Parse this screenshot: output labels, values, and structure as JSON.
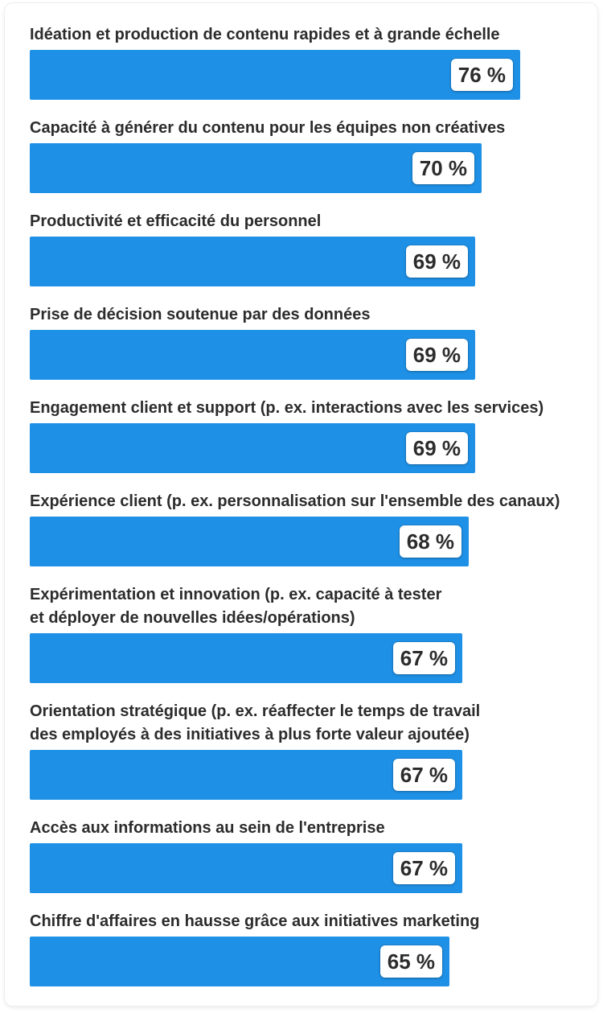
{
  "colors": {
    "bar": "#1e90e6",
    "text": "#2c2c2c",
    "badge_bg": "#ffffff"
  },
  "chart_data": {
    "type": "bar",
    "orientation": "horizontal",
    "categories": [
      "Idéation et production de contenu rapides et à grande échelle",
      "Capacité à générer du contenu pour les équipes non créatives",
      "Productivité et efficacité du personnel",
      "Prise de décision soutenue par des données",
      "Engagement client et support (p. ex. interactions avec les services)",
      "Expérience client (p. ex. personnalisation sur l'ensemble des canaux)",
      "Expérimentation et innovation (p. ex. capacité à tester\net déployer de nouvelles idées/opérations)",
      "Orientation stratégique (p. ex. réaffecter le temps de travail\ndes employés à des initiatives à plus forte valeur ajoutée)",
      "Accès aux informations au sein de l'entreprise",
      "Chiffre d'affaires en hausse grâce aux initiatives marketing"
    ],
    "values": [
      76,
      70,
      69,
      69,
      69,
      68,
      67,
      67,
      67,
      65
    ],
    "value_labels": [
      "76 %",
      "70 %",
      "69 %",
      "69 %",
      "69 %",
      "68 %",
      "67 %",
      "67 %",
      "67 %",
      "65 %"
    ],
    "xlim": [
      0,
      86
    ],
    "grid": false,
    "legend": "none"
  }
}
